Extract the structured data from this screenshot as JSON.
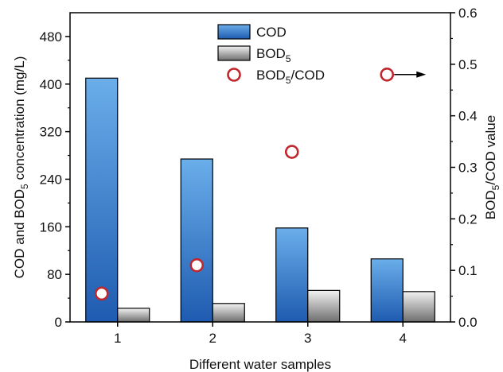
{
  "chart_data": {
    "type": "bar",
    "xlabel": "Different water samples",
    "ylabel_left": {
      "pre": "COD and BOD",
      "sub": "5",
      "post": " concentration (mg/L)"
    },
    "ylabel_right": {
      "pre": "BOD",
      "sub": "5",
      "post": "/COD value"
    },
    "categories": [
      "1",
      "2",
      "3",
      "4"
    ],
    "left_axis": {
      "min": 0,
      "max": 520,
      "ticks": [
        0,
        80,
        160,
        240,
        320,
        400,
        480
      ]
    },
    "right_axis": {
      "min": 0,
      "max": 0.6,
      "ticks": [
        "0.0",
        "0.1",
        "0.2",
        "0.3",
        "0.4",
        "0.5",
        "0.6"
      ]
    },
    "series": [
      {
        "name": "COD",
        "kind": "bar",
        "axis": "left",
        "color": "#3a7fd0",
        "values": [
          410,
          274,
          158,
          106
        ]
      },
      {
        "name": "BOD5",
        "kind": "bar",
        "axis": "left",
        "color": "#9a9a9a",
        "values": [
          23,
          31,
          53,
          51
        ]
      },
      {
        "name": "BOD5/COD",
        "kind": "scatter",
        "axis": "right",
        "marker_color": "#c0272d",
        "values": [
          0.055,
          0.11,
          0.33,
          0.48
        ]
      }
    ],
    "legend": {
      "position": "top-center",
      "items": [
        {
          "pre": "COD",
          "sub": "",
          "post": ""
        },
        {
          "pre": "BOD",
          "sub": "5",
          "post": ""
        },
        {
          "pre": "BOD",
          "sub": "5",
          "post": "/COD"
        }
      ]
    },
    "annotation": "arrow pointing right from BOD5/COD point of sample 4 toward right axis",
    "grid": false
  }
}
